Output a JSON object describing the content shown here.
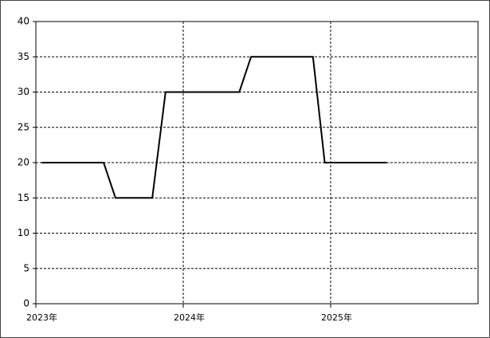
{
  "chart_data": {
    "type": "line",
    "x": [
      2023.04,
      2023.46,
      2023.54,
      2023.79,
      2023.88,
      2024.38,
      2024.46,
      2024.88,
      2024.96,
      2025.38
    ],
    "values": [
      20,
      20,
      15,
      15,
      30,
      30,
      35,
      35,
      20,
      20
    ],
    "color": "#000000",
    "xlim": [
      2023,
      2026
    ],
    "xticks": [
      {
        "value": 2023,
        "label": "2023年"
      },
      {
        "value": 2024,
        "label": "2024年"
      },
      {
        "value": 2025,
        "label": "2025年"
      }
    ],
    "ylim": [
      0,
      40
    ],
    "yticks": [
      0,
      5,
      10,
      15,
      20,
      25,
      30,
      35,
      40
    ],
    "grid": true
  }
}
